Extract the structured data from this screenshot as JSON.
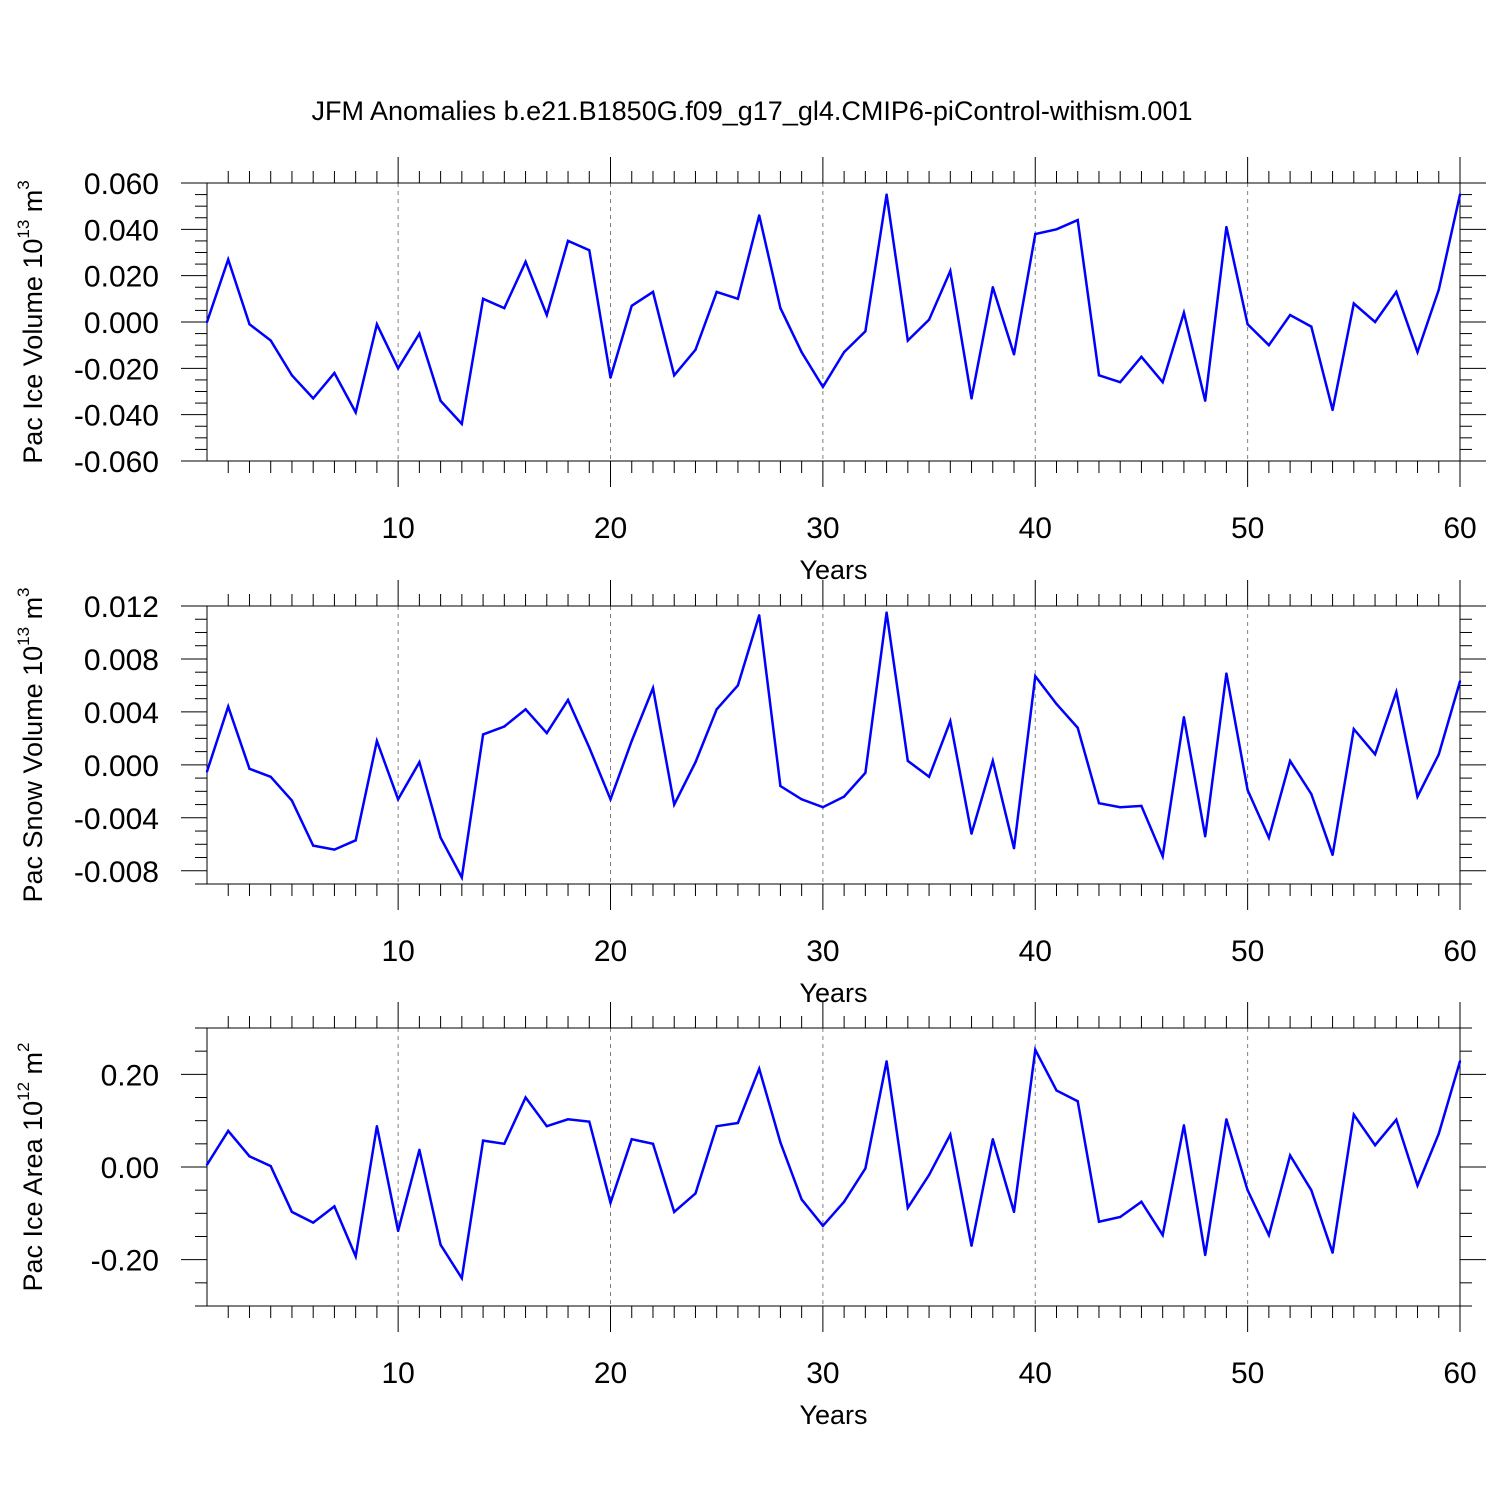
{
  "title": "JFM Anomalies b.e21.B1850G.f09_g17_gl4.CMIP6-piControl-withism.001",
  "colors": {
    "line": "#0000ff",
    "grid": "#808080",
    "axis": "#000000"
  },
  "chart_data": [
    {
      "type": "line",
      "xlabel": "Years",
      "ylabel": {
        "text": "Pac Ice Volume 10",
        "sup": "13",
        "unit": " m",
        "unit_sup": "3"
      },
      "xlim": [
        1,
        60
      ],
      "ylim": [
        -0.06,
        0.06
      ],
      "xticks": [
        10,
        20,
        30,
        40,
        50,
        60
      ],
      "yticks": [
        {
          "value": 0.06,
          "label": "0.060"
        },
        {
          "value": 0.04,
          "label": "0.040"
        },
        {
          "value": 0.02,
          "label": "0.020"
        },
        {
          "value": 0.0,
          "label": "0.000"
        },
        {
          "value": -0.02,
          "label": "-0.020"
        },
        {
          "value": -0.04,
          "label": "-0.040"
        },
        {
          "value": -0.06,
          "label": "-0.060"
        }
      ],
      "series": [
        {
          "name": "Pac Ice Volume",
          "values": [
            0.0,
            0.027,
            -0.001,
            -0.008,
            -0.023,
            -0.033,
            -0.022,
            -0.039,
            -0.001,
            -0.02,
            -0.005,
            -0.034,
            -0.044,
            0.01,
            0.006,
            0.026,
            0.003,
            0.035,
            0.031,
            -0.024,
            0.007,
            0.013,
            -0.023,
            -0.012,
            0.013,
            0.01,
            0.046,
            0.006,
            -0.013,
            -0.028,
            -0.013,
            -0.004,
            0.055,
            -0.008,
            0.001,
            0.022,
            -0.033,
            0.015,
            -0.014,
            0.038,
            0.04,
            0.044,
            -0.023,
            -0.026,
            -0.015,
            -0.026,
            0.004,
            -0.034,
            0.041,
            -0.001,
            -0.01,
            0.003,
            -0.002,
            -0.038,
            0.008,
            0.0,
            0.013,
            -0.013,
            0.014,
            0.055
          ]
        }
      ]
    },
    {
      "type": "line",
      "xlabel": "Years",
      "ylabel": {
        "text": "Pac Snow Volume 10",
        "sup": "13",
        "unit": " m",
        "unit_sup": "3"
      },
      "xlim": [
        1,
        60
      ],
      "ylim": [
        -0.009,
        0.012
      ],
      "xticks": [
        10,
        20,
        30,
        40,
        50,
        60
      ],
      "yticks": [
        {
          "value": 0.012,
          "label": "0.012"
        },
        {
          "value": 0.008,
          "label": "0.008"
        },
        {
          "value": 0.004,
          "label": "0.004"
        },
        {
          "value": 0.0,
          "label": "0.000"
        },
        {
          "value": -0.004,
          "label": "-0.004"
        },
        {
          "value": -0.008,
          "label": "-0.008"
        }
      ],
      "series": [
        {
          "name": "Pac Snow Volume",
          "values": [
            -0.0005,
            0.0044,
            -0.0003,
            -0.0009,
            -0.0027,
            -0.0061,
            -0.0064,
            -0.0057,
            0.0018,
            -0.0026,
            0.0002,
            -0.0055,
            -0.0085,
            0.0023,
            0.0029,
            0.0042,
            0.0024,
            0.0049,
            0.0013,
            -0.0026,
            0.0018,
            0.0058,
            -0.003,
            0.0002,
            0.0042,
            0.006,
            0.0113,
            -0.0016,
            -0.0026,
            -0.0032,
            -0.0024,
            -0.0006,
            0.0115,
            0.0003,
            -0.0009,
            0.0033,
            -0.0052,
            0.0003,
            -0.0063,
            0.0067,
            0.0046,
            0.0028,
            -0.0029,
            -0.0032,
            -0.0031,
            -0.0069,
            0.0036,
            -0.0054,
            0.0069,
            -0.0019,
            -0.0055,
            0.0003,
            -0.0022,
            -0.0068,
            0.0027,
            0.0008,
            0.0055,
            -0.0024,
            0.0008,
            0.0063
          ]
        }
      ]
    },
    {
      "type": "line",
      "xlabel": "Years",
      "ylabel": {
        "text": "Pac Ice Area 10",
        "sup": "12",
        "unit": " m",
        "unit_sup": "2"
      },
      "xlim": [
        1,
        60
      ],
      "ylim": [
        -0.3,
        0.3
      ],
      "xticks": [
        10,
        20,
        30,
        40,
        50,
        60
      ],
      "yticks": [
        {
          "value": 0.2,
          "label": "0.20"
        },
        {
          "value": 0.0,
          "label": "0.00"
        },
        {
          "value": -0.2,
          "label": "-0.20"
        }
      ],
      "series": [
        {
          "name": "Pac Ice Area",
          "values": [
            0.005,
            0.078,
            0.023,
            0.002,
            -0.097,
            -0.12,
            -0.085,
            -0.193,
            0.088,
            -0.138,
            0.037,
            -0.168,
            -0.24,
            0.057,
            0.05,
            0.15,
            0.088,
            0.103,
            0.098,
            -0.077,
            0.06,
            0.05,
            -0.097,
            -0.057,
            0.088,
            0.095,
            0.212,
            0.053,
            -0.07,
            -0.127,
            -0.075,
            -0.003,
            0.228,
            -0.088,
            -0.017,
            0.07,
            -0.17,
            0.06,
            -0.097,
            0.253,
            0.165,
            0.142,
            -0.118,
            -0.108,
            -0.075,
            -0.147,
            0.09,
            -0.19,
            0.103,
            -0.05,
            -0.147,
            0.025,
            -0.05,
            -0.185,
            0.113,
            0.047,
            0.102,
            -0.04,
            0.072,
            0.228
          ]
        }
      ]
    }
  ]
}
